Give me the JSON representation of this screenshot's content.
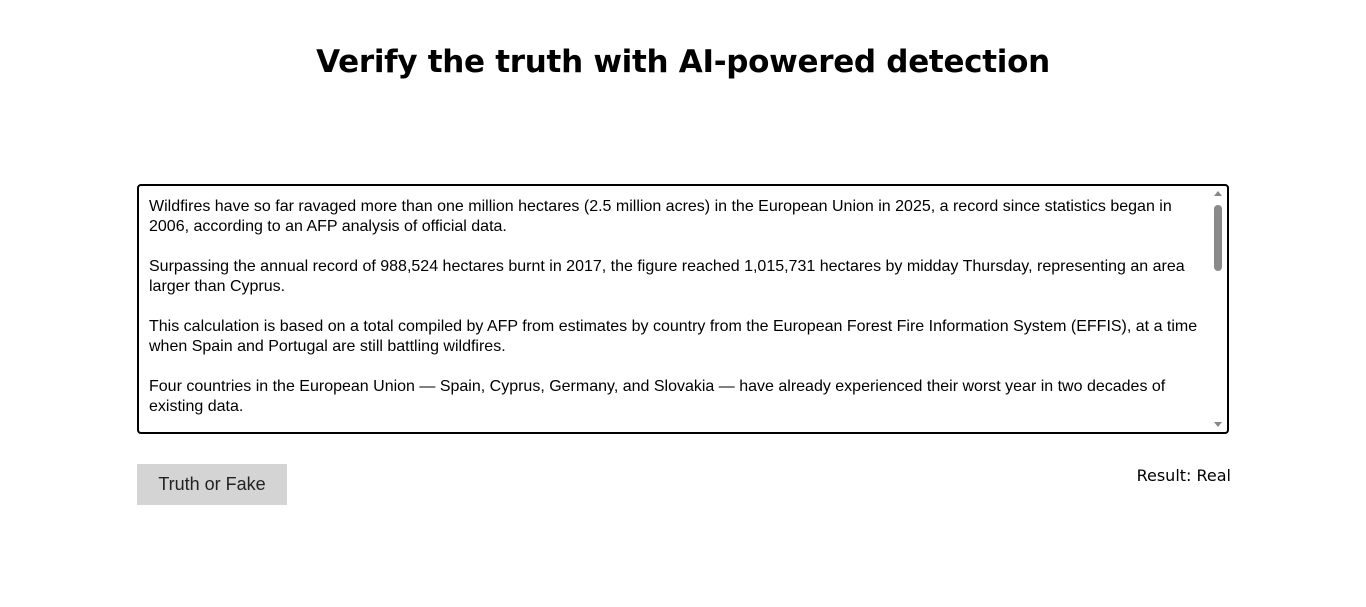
{
  "header": {
    "title": "Verify the truth with AI-powered detection"
  },
  "input": {
    "paragraphs": [
      "Wildfires have so far ravaged more than one million hectares (2.5 million acres) in the European Union in 2025, a record since statistics began in 2006, according to an AFP analysis of official data.",
      "Surpassing the annual record of 988,524 hectares burnt in 2017, the figure reached 1,015,731 hectares by midday Thursday, representing an area larger than Cyprus.",
      "This calculation is based on a total compiled by AFP from estimates by country from the European Forest Fire Information System (EFFIS), at a time when Spain and Portugal are still battling wildfires.",
      "Four countries in the European Union — Spain, Cyprus, Germany, and Slovakia — have already experienced their worst year in two decades of existing data."
    ]
  },
  "actions": {
    "check_label": "Truth or Fake"
  },
  "result": {
    "text": "Result: Real"
  }
}
